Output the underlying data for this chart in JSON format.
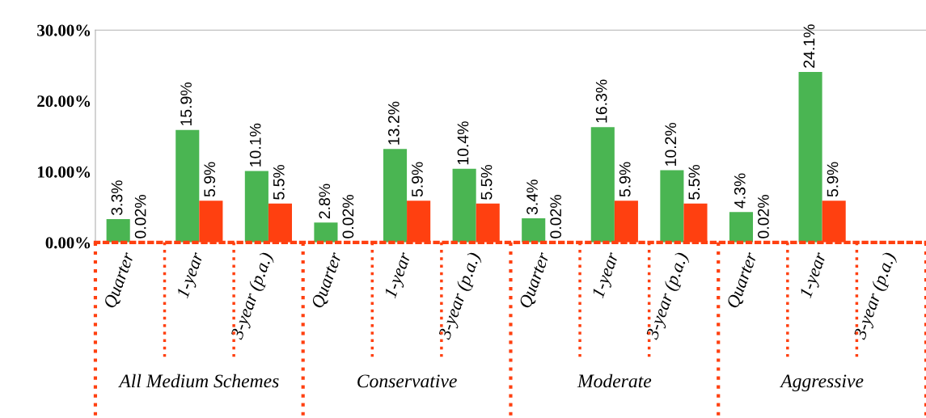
{
  "chart_data": {
    "type": "bar",
    "categories": [
      "Quarter",
      "1-year",
      "3-year (p.a.)",
      "Quarter",
      "1-year",
      "3-year (p.a.)",
      "Quarter",
      "1-year",
      "3-year (p.a.)",
      "Quarter",
      "1-year",
      "3-year (p.a.)"
    ],
    "series": [
      {
        "color": "#4ab552",
        "values": [
          3.3,
          15.9,
          10.1,
          2.8,
          13.2,
          10.4,
          3.4,
          16.3,
          10.2,
          4.3,
          24.1,
          null
        ]
      },
      {
        "color": "#ff4010",
        "values": [
          0.02,
          5.9,
          5.5,
          0.02,
          5.9,
          5.5,
          0.02,
          5.9,
          5.5,
          0.02,
          5.9,
          null
        ]
      }
    ],
    "value_labels": [
      [
        "3.3%",
        "15.9%",
        "10.1%",
        "2.8%",
        "13.2%",
        "10.4%",
        "3.4%",
        "16.3%",
        "10.2%",
        "4.3%",
        "24.1%",
        null
      ],
      [
        "0.02%",
        "5.9%",
        "5.5%",
        "0.02%",
        "5.9%",
        "5.5%",
        "0.02%",
        "5.9%",
        "5.5%",
        "0.02%",
        "5.9%",
        null
      ]
    ],
    "ylim": [
      0,
      30
    ],
    "yticks": [
      {
        "value": 0,
        "label": "0.00%"
      },
      {
        "value": 10,
        "label": "10.00%"
      },
      {
        "value": 20,
        "label": "20.00%"
      },
      {
        "value": 30,
        "label": "30.00%"
      }
    ],
    "grid": false,
    "annotations": [
      "All Medium Schemes",
      "Conservative",
      "Moderate",
      "Aggressive"
    ]
  }
}
